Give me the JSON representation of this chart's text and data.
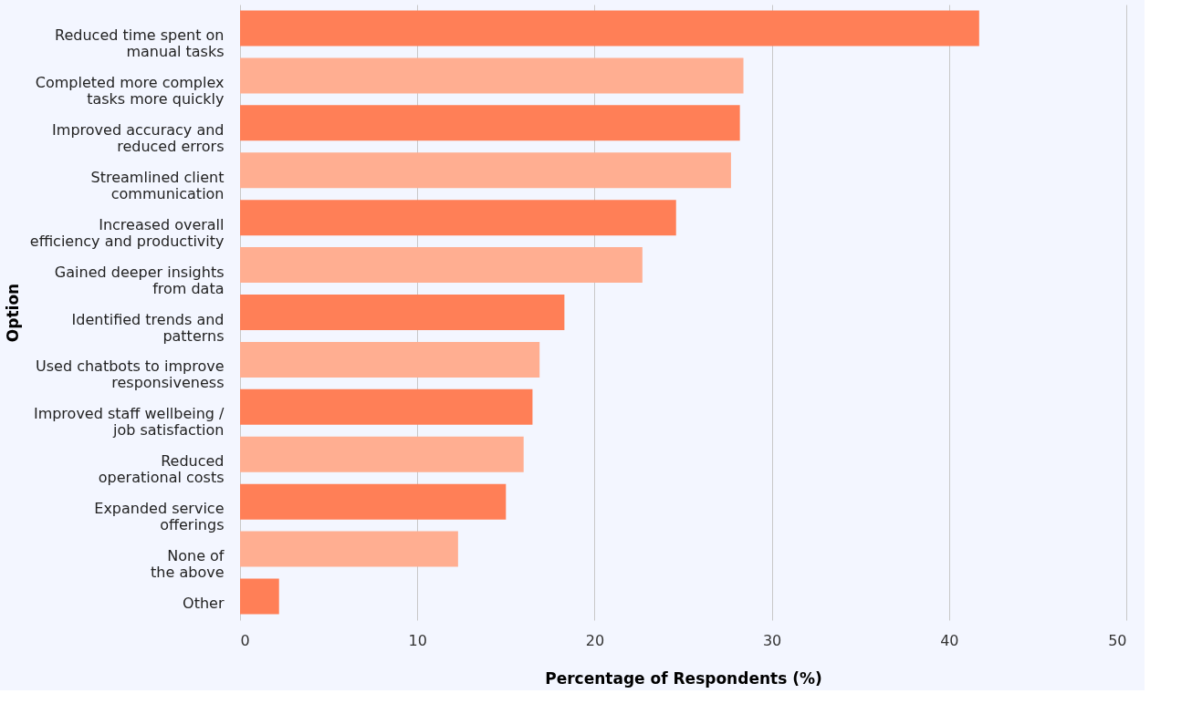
{
  "chart_data": {
    "type": "bar",
    "orientation": "horizontal",
    "xlabel": "Percentage of Respondents (%)",
    "ylabel": "Option",
    "categories": [
      "Reduced time spent on\nmanual tasks",
      "Completed more complex\ntasks more quickly",
      "Improved accuracy and\nreduced errors",
      "Streamlined client\ncommunication",
      "Increased overall\nefficiency and productivity",
      "Gained deeper insights\nfrom data",
      "Identified trends and\npatterns",
      "Used chatbots to improve\nresponsiveness",
      "Improved staff wellbeing /\njob satisfaction",
      "Reduced\noperational costs",
      "Expanded service\nofferings",
      "None of\nthe above",
      "Other"
    ],
    "values": [
      41.7,
      28.4,
      28.2,
      27.7,
      24.6,
      22.7,
      18.3,
      16.9,
      16.5,
      16.0,
      15.0,
      12.3,
      2.2
    ],
    "colors": [
      "#ff7f57",
      "#ffae91",
      "#ff7f57",
      "#ffae91",
      "#ff7f57",
      "#ffae91",
      "#ff7f57",
      "#ffae91",
      "#ff7f57",
      "#ffae91",
      "#ff7f57",
      "#ffae91",
      "#ff7f57"
    ],
    "xlim": [
      0,
      50
    ],
    "xticks": [
      0,
      10,
      20,
      30,
      40,
      50
    ],
    "grid": "x"
  }
}
